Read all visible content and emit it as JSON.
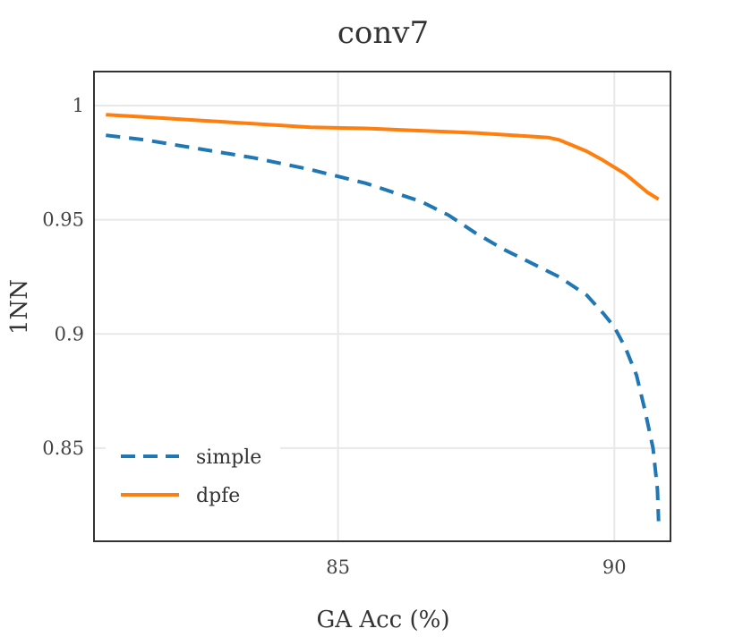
{
  "chart_data": {
    "type": "line",
    "title": "conv7",
    "xlabel": "GA Acc (%)",
    "ylabel": "1NN",
    "xlim": [
      80.6,
      91.0
    ],
    "ylim": [
      0.8096,
      1.0145
    ],
    "xticks": [
      85,
      90
    ],
    "xtick_labels": [
      "85",
      "90"
    ],
    "yticks": [
      0.85,
      0.9,
      0.95,
      1.0
    ],
    "ytick_labels": [
      "0.85",
      "0.9",
      "0.95",
      "1"
    ],
    "grid": true,
    "legend_position": "lower-left",
    "series": [
      {
        "name": "simple",
        "color": "#1f77b4",
        "style": "dashed",
        "x": [
          80.8,
          81.5,
          82.5,
          83.5,
          84.5,
          85.5,
          86.5,
          87.0,
          87.5,
          88.0,
          88.5,
          89.0,
          89.5,
          89.8,
          90.0,
          90.2,
          90.4,
          90.55,
          90.7,
          90.78,
          90.8
        ],
        "y": [
          0.987,
          0.985,
          0.981,
          0.977,
          0.972,
          0.966,
          0.958,
          0.952,
          0.944,
          0.937,
          0.931,
          0.925,
          0.917,
          0.909,
          0.903,
          0.894,
          0.882,
          0.867,
          0.85,
          0.832,
          0.818
        ]
      },
      {
        "name": "dpfe",
        "color": "#ff7f0e",
        "style": "solid",
        "x": [
          80.8,
          81.5,
          82.5,
          83.5,
          84.5,
          85.5,
          86.5,
          87.5,
          88.5,
          88.8,
          89.0,
          89.2,
          89.5,
          89.8,
          90.0,
          90.2,
          90.4,
          90.6,
          90.8
        ],
        "y": [
          0.996,
          0.995,
          0.9935,
          0.992,
          0.9905,
          0.99,
          0.989,
          0.988,
          0.9865,
          0.986,
          0.985,
          0.983,
          0.98,
          0.976,
          0.973,
          0.97,
          0.966,
          0.962,
          0.959
        ]
      }
    ]
  }
}
